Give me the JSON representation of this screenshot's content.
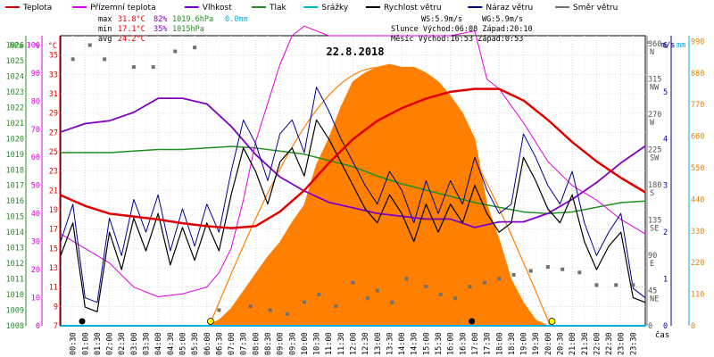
{
  "legend": [
    {
      "label": "Teplota",
      "color": "#e00000"
    },
    {
      "label": "Přízemní teplota",
      "color": "#e000e0"
    },
    {
      "label": "Vlhkost",
      "color": "#8000c0"
    },
    {
      "label": "Tlak",
      "color": "#209020"
    },
    {
      "label": "Srážky",
      "color": "#00b0e0"
    },
    {
      "label": "Rychlost větru",
      "color": "#000000"
    },
    {
      "label": "Náraz větru",
      "color": "#000090"
    },
    {
      "label": "Směr větru",
      "color": "#707070"
    }
  ],
  "stats": {
    "max_label": "max",
    "max_temp": "31.8°C",
    "max_hum": "82%",
    "max_press": "1019.6hPa",
    "max_rain": "0.0mm",
    "min_label": "min",
    "min_temp": "17.1°C",
    "min_hum": "35%",
    "min_press": "1015hPa",
    "avg_label": "avg",
    "avg_temp": "24.2°C"
  },
  "info": {
    "ws": "WS:5.9m/s",
    "wg": "WG:5.9m/s",
    "sun": "Slunce Východ:06:08  Západ:20:10",
    "moon": "Měsíc  Východ:16:53  Západ:0:53"
  },
  "chart_data": {
    "type": "line",
    "title": "22.8.2018",
    "xlabel": "čas",
    "x_ticks": [
      "00:30",
      "01:00",
      "01:30",
      "02:00",
      "02:30",
      "03:00",
      "03:30",
      "04:00",
      "04:30",
      "05:00",
      "05:30",
      "06:00",
      "06:30",
      "07:00",
      "07:30",
      "08:00",
      "08:30",
      "09:00",
      "09:30",
      "10:00",
      "10:30",
      "11:00",
      "11:30",
      "12:00",
      "12:30",
      "13:00",
      "13:30",
      "14:00",
      "14:30",
      "15:00",
      "15:30",
      "16:00",
      "16:30",
      "17:00",
      "17:30",
      "18:00",
      "18:30",
      "19:00",
      "19:30",
      "20:00",
      "20:30",
      "21:00",
      "21:30",
      "22:00",
      "22:30",
      "23:00",
      "23:30"
    ],
    "axes": {
      "hpa": {
        "label": "hPa",
        "ticks": [
          1008,
          1009,
          1010,
          1011,
          1012,
          1013,
          1014,
          1015,
          1016,
          1017,
          1018,
          1019,
          1020,
          1021,
          1022,
          1023,
          1024,
          1025,
          1026
        ],
        "range": [
          1008,
          1026.6
        ]
      },
      "percent": {
        "label": "%",
        "ticks": [
          0,
          10,
          20,
          30,
          40,
          50,
          60,
          70,
          80,
          90,
          100
        ],
        "range": [
          0,
          103.3
        ]
      },
      "temp": {
        "label": "°C",
        "ticks": [
          7,
          9,
          11,
          13,
          15,
          17,
          19,
          21,
          23,
          25,
          27,
          29,
          31,
          33,
          35
        ],
        "range": [
          7,
          37
        ]
      },
      "dir": {
        "label": "°",
        "ticks": [
          "0",
          "45 NE",
          "90 E",
          "135 SE",
          "180 S",
          "225 SW",
          "270 W",
          "315 NW",
          "360 N"
        ],
        "range": [
          0,
          370
        ]
      },
      "wind": {
        "label": "m/s",
        "ticks": [
          0,
          1,
          2,
          3,
          4,
          5,
          6
        ],
        "range": [
          0,
          6.2
        ]
      },
      "rain": {
        "label": "mm",
        "ticks": [
          0,
          110,
          220,
          330,
          440,
          550,
          660,
          770,
          880,
          990
        ],
        "range": [
          0,
          1010
        ]
      }
    },
    "series": [
      {
        "name": "Teplota",
        "axis": "temp",
        "x": [
          0,
          1,
          2,
          3,
          4,
          5,
          6,
          7,
          8,
          9,
          10,
          11,
          12,
          13,
          14,
          15,
          16,
          17,
          18,
          19,
          20,
          21,
          22,
          23,
          24
        ],
        "y": [
          20.5,
          19.4,
          18.6,
          18.3,
          18.0,
          17.6,
          17.3,
          17.1,
          17.3,
          18.8,
          21.0,
          23.8,
          26.3,
          28.2,
          29.5,
          30.5,
          31.2,
          31.5,
          31.5,
          30.3,
          28.3,
          26.0,
          24.0,
          22.3,
          20.8
        ]
      },
      {
        "name": "Přízemní teplota",
        "axis": "temp",
        "x": [
          0,
          1,
          2,
          3,
          4,
          5,
          6,
          6.5,
          7,
          7.5,
          8,
          8.5,
          9,
          9.5,
          10,
          11,
          12,
          13,
          14,
          15,
          16,
          17,
          17.3,
          17.5,
          18,
          19,
          20,
          21,
          22,
          23,
          24
        ],
        "y": [
          16.5,
          15.0,
          13.5,
          11.0,
          10.0,
          10.3,
          11.0,
          12.5,
          15.0,
          20.0,
          26.0,
          30.0,
          34.0,
          37.0,
          38.0,
          37.0,
          37.0,
          37.0,
          37.0,
          37.0,
          37.0,
          37.5,
          34.5,
          32.5,
          31.5,
          28.0,
          24.0,
          21.5,
          20.0,
          18.0,
          16.5
        ]
      },
      {
        "name": "Vlhkost",
        "axis": "percent",
        "x": [
          0,
          1,
          2,
          3,
          4,
          5,
          6,
          7,
          8,
          9,
          10,
          11,
          12,
          13,
          14,
          15,
          16,
          17,
          18,
          19,
          20,
          21,
          22,
          23,
          24
        ],
        "y": [
          69,
          72,
          73,
          76,
          81,
          81,
          79,
          71,
          61,
          53,
          48,
          44,
          42,
          40,
          39,
          38,
          38,
          35,
          37,
          37,
          40,
          45,
          51,
          58,
          64
        ]
      },
      {
        "name": "Tlak",
        "axis": "hpa",
        "x": [
          0,
          1,
          2,
          3,
          4,
          5,
          6,
          7,
          8,
          9,
          10,
          11,
          12,
          13,
          14,
          15,
          16,
          17,
          18,
          19,
          20,
          21,
          22,
          23,
          24
        ],
        "y": [
          1019.1,
          1019.1,
          1019.1,
          1019.2,
          1019.3,
          1019.3,
          1019.4,
          1019.5,
          1019.4,
          1019.2,
          1019.0,
          1018.6,
          1018.2,
          1017.6,
          1017.1,
          1016.7,
          1016.3,
          1015.9,
          1015.6,
          1015.3,
          1015.2,
          1015.3,
          1015.6,
          1015.9,
          1016.0
        ]
      },
      {
        "name": "Srážky",
        "axis": "rain",
        "x": [
          0,
          24
        ],
        "y": [
          0,
          0
        ]
      },
      {
        "name": "Rychlost větru",
        "axis": "wind",
        "x": [
          0,
          0.5,
          1,
          1.5,
          2,
          2.5,
          3,
          3.5,
          4,
          4.5,
          5,
          5.5,
          6,
          6.5,
          7,
          7.5,
          8,
          8.5,
          9,
          9.5,
          10,
          10.5,
          11,
          11.5,
          12,
          12.5,
          13,
          13.5,
          14,
          14.5,
          15,
          15.5,
          16,
          16.5,
          17,
          17.5,
          18,
          18.5,
          19,
          19.5,
          20,
          20.5,
          21,
          21.5,
          22,
          22.5,
          23,
          23.5,
          24
        ],
        "y": [
          1.5,
          2.2,
          0.4,
          0.3,
          2.0,
          1.2,
          2.3,
          1.6,
          2.4,
          1.3,
          2.1,
          1.4,
          2.2,
          1.6,
          2.8,
          3.8,
          3.3,
          2.6,
          3.5,
          3.8,
          3.2,
          4.4,
          4.0,
          3.5,
          3.0,
          2.5,
          2.2,
          2.8,
          2.4,
          1.8,
          2.6,
          2.0,
          2.6,
          2.2,
          3.0,
          2.4,
          2.0,
          2.2,
          3.6,
          3.1,
          2.5,
          2.2,
          2.8,
          1.8,
          1.2,
          1.7,
          2.0,
          0.6,
          0.5
        ]
      },
      {
        "name": "Náraz větru",
        "axis": "wind",
        "x": [
          0,
          0.5,
          1,
          1.5,
          2,
          2.5,
          3,
          3.5,
          4,
          4.5,
          5,
          5.5,
          6,
          6.5,
          7,
          7.5,
          8,
          8.5,
          9,
          9.5,
          10,
          10.5,
          11,
          11.5,
          12,
          12.5,
          13,
          13.5,
          14,
          14.5,
          15,
          15.5,
          16,
          16.5,
          17,
          17.5,
          18,
          18.5,
          19,
          19.5,
          20,
          20.5,
          21,
          21.5,
          22,
          22.5,
          23,
          23.5,
          24
        ],
        "y": [
          1.8,
          2.6,
          0.6,
          0.5,
          2.3,
          1.5,
          2.7,
          2.0,
          2.8,
          1.6,
          2.5,
          1.7,
          2.6,
          2.0,
          3.3,
          4.4,
          3.9,
          3.1,
          4.1,
          4.4,
          3.7,
          5.1,
          4.6,
          4.0,
          3.5,
          3.0,
          2.6,
          3.3,
          2.9,
          2.2,
          3.1,
          2.4,
          3.1,
          2.6,
          3.6,
          2.9,
          2.4,
          2.6,
          4.1,
          3.6,
          3.0,
          2.6,
          3.3,
          2.2,
          1.5,
          2.0,
          2.4,
          0.8,
          0.6
        ]
      },
      {
        "name": "Směr větru",
        "axis": "dir",
        "x": [
          0.5,
          1.2,
          1.8,
          3.0,
          3.8,
          4.7,
          5.5,
          6.5,
          7.8,
          8.6,
          9.3,
          10.0,
          10.6,
          11.3,
          12.0,
          12.6,
          13.0,
          13.6,
          14.2,
          15.0,
          15.6,
          16.2,
          16.8,
          17.4,
          18.0,
          18.6,
          19.3,
          20.0,
          20.6,
          21.3,
          22.0,
          22.8,
          23.5
        ],
        "y": [
          340,
          358,
          340,
          330,
          330,
          350,
          355,
          20,
          25,
          20,
          15,
          30,
          40,
          25,
          55,
          35,
          45,
          30,
          60,
          50,
          40,
          35,
          50,
          55,
          60,
          65,
          70,
          75,
          72,
          68,
          52,
          52,
          52
        ]
      },
      {
        "name": "Sluneční záření",
        "axis": "rain",
        "x": [
          6.0,
          6.5,
          7.0,
          7.5,
          8.0,
          8.5,
          9.0,
          9.5,
          10.0,
          10.5,
          11.0,
          11.5,
          12.0,
          12.5,
          13.0,
          13.5,
          14.0,
          14.5,
          15.0,
          15.5,
          16.0,
          16.5,
          17.0,
          17.5,
          18.0,
          18.5,
          19.0,
          19.5,
          20.0
        ],
        "y": [
          0,
          20,
          60,
          120,
          180,
          240,
          290,
          360,
          420,
          560,
          650,
          760,
          850,
          880,
          900,
          910,
          900,
          900,
          880,
          850,
          800,
          740,
          650,
          420,
          300,
          160,
          80,
          20,
          0
        ]
      }
    ]
  }
}
